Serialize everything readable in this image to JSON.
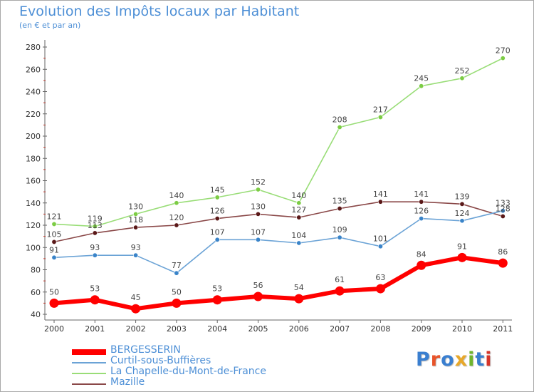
{
  "title": "Evolution des Impôts locaux par Habitant",
  "subtitle": "(en € et par an)",
  "logo": {
    "text": "Proxiti",
    "letter_colors": [
      "#3a7fd0",
      "#e8542a",
      "#3a7fd0",
      "#e8a82a",
      "#6fb52e",
      "#3a7fd0",
      "#d6352a"
    ]
  },
  "chart_data": {
    "type": "line",
    "x": [
      2000,
      2001,
      2002,
      2003,
      2004,
      2005,
      2006,
      2007,
      2008,
      2009,
      2010,
      2011
    ],
    "xticks": [
      "2000",
      "2001",
      "2002",
      "2003",
      "2004",
      "2005",
      "2006",
      "2007",
      "2008",
      "2009",
      "2010",
      "2011"
    ],
    "ylim": [
      40,
      280
    ],
    "yticks": [
      40,
      60,
      80,
      100,
      120,
      140,
      160,
      180,
      200,
      220,
      240,
      260,
      280
    ],
    "grid": false,
    "legend_position": "bottom-left",
    "series": [
      {
        "name": "BERGESSERIN",
        "values": [
          50,
          53,
          45,
          50,
          53,
          56,
          54,
          61,
          63,
          84,
          91,
          86
        ],
        "color": "#ff0000",
        "marker_color": "#ff0000"
      },
      {
        "name": "Curtil-sous-Buffières",
        "values": [
          91,
          93,
          93,
          77,
          107,
          107,
          104,
          109,
          101,
          126,
          124,
          133
        ],
        "color": "#6ba3d6",
        "marker_color": "#3a84c9"
      },
      {
        "name": "La Chapelle-du-Mont-de-France",
        "values": [
          121,
          119,
          130,
          140,
          145,
          152,
          140,
          208,
          217,
          245,
          252,
          270
        ],
        "color": "#99dd77",
        "marker_color": "#7ccc44"
      },
      {
        "name": "Mazille",
        "values": [
          105,
          113,
          118,
          120,
          126,
          130,
          127,
          135,
          141,
          141,
          139,
          128
        ],
        "color": "#8a4848",
        "marker_color": "#5a1818"
      }
    ]
  }
}
